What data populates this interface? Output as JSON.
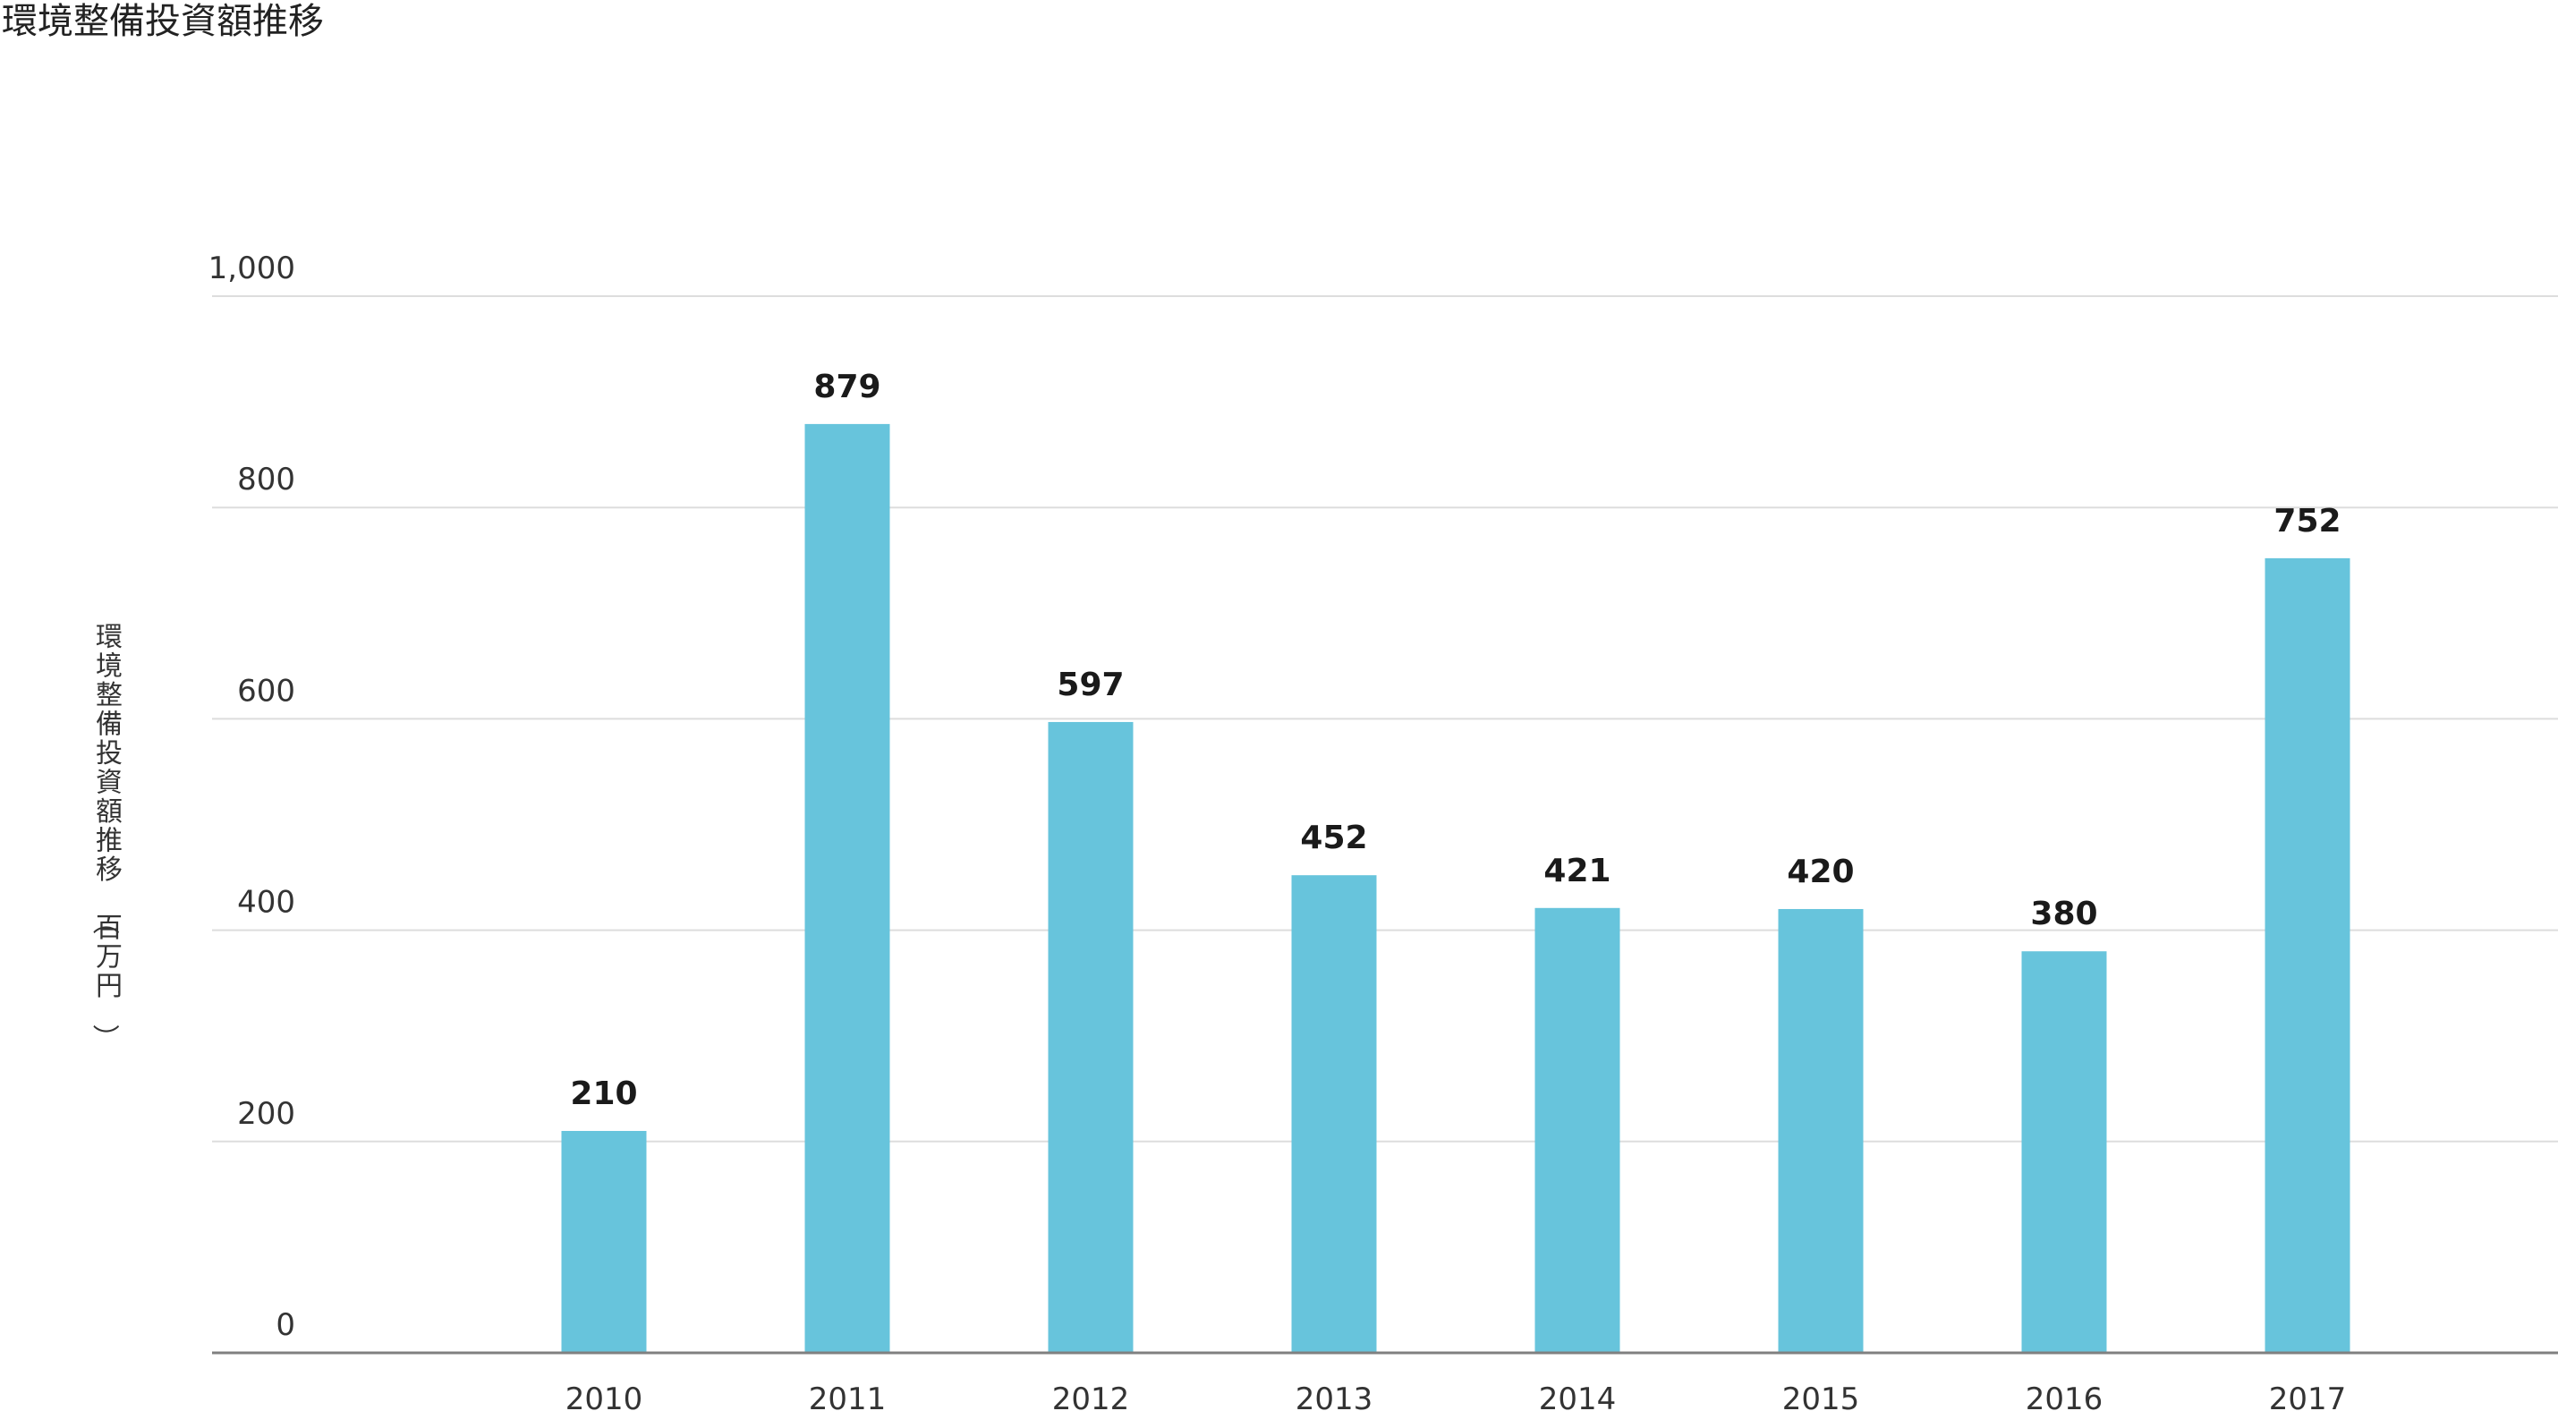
{
  "chart_data": {
    "type": "bar",
    "title": "環境整備投資額推移",
    "xlabel": "",
    "ylabel": "環境整備投資額推移（百万円）",
    "categories": [
      "2010",
      "2011",
      "2012",
      "2013",
      "2014",
      "2015",
      "2016",
      "2017"
    ],
    "values": [
      210,
      879,
      597,
      452,
      421,
      420,
      380,
      752
    ],
    "value_labels": [
      "210",
      "879",
      "597",
      "452",
      "421",
      "420",
      "380",
      "752"
    ],
    "ylim": [
      0,
      1000
    ],
    "yticks": [
      0,
      200,
      400,
      600,
      800,
      1000
    ],
    "ytick_labels": [
      "0",
      "200",
      "400",
      "600",
      "800",
      "1,000"
    ],
    "grid": true,
    "legend": "none",
    "colors": {
      "bar": "#67c4dc",
      "grid": "#dddddd",
      "axis": "#808080",
      "text": "#333333",
      "value_label": "#1a1a1a"
    }
  }
}
